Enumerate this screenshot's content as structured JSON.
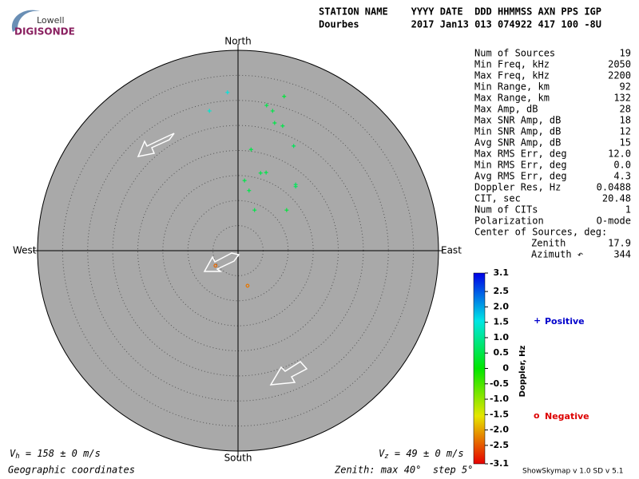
{
  "header": {
    "logo_top": "Lowell",
    "logo_bottom": "DIGISONDE",
    "line1": "STATION NAME    YYYY DATE  DDD HHMMSS AXN PPS IGP",
    "line2": "Dourbes         2017 Jan13 013 074922 417 100 -8U"
  },
  "stats": {
    "rows": [
      [
        "Num of Sources",
        "19"
      ],
      [
        "Min Freq, kHz",
        "2050"
      ],
      [
        "Max Freq, kHz",
        "2200"
      ],
      [
        "Min Range, km",
        "92"
      ],
      [
        "Max Range, km",
        "132"
      ],
      [
        "Max Amp, dB",
        "28"
      ],
      [
        "Max SNR Amp, dB",
        "18"
      ],
      [
        "Min SNR Amp, dB",
        "12"
      ],
      [
        "Avg SNR Amp, dB",
        "15"
      ],
      [
        "Max RMS Err, deg",
        "12.0"
      ],
      [
        "Min RMS Err, deg",
        "0.0"
      ],
      [
        "Avg RMS Err, deg",
        "4.3"
      ],
      [
        "Doppler Res, Hz",
        "0.0488"
      ],
      [
        "CIT, sec",
        "20.48"
      ],
      [
        "Num of CITs",
        "1"
      ],
      [
        "Polarization",
        "O-mode"
      ],
      [
        "Center of Sources, deg:"
      ]
    ],
    "center": [
      [
        "Zenith",
        "17.9"
      ],
      [
        "Azimuth ↶",
        "344"
      ]
    ]
  },
  "chart_data": {
    "type": "skymap",
    "zenith_max": 40,
    "zenith_step": 5,
    "directions": {
      "north": "North",
      "south": "South",
      "east": "East",
      "west": "West"
    },
    "east": [
      -2.1,
      -5.7,
      5.7,
      9.2,
      6.9,
      7.3,
      8.9,
      11.1,
      2.6,
      1.3,
      4.5,
      5.6,
      2.2,
      11.5,
      11.5,
      3.3,
      9.7,
      -4.5,
      1.9
    ],
    "north": [
      31.6,
      27.9,
      29.0,
      30.8,
      27.9,
      25.5,
      24.9,
      20.9,
      20.2,
      14.0,
      15.5,
      15.6,
      12.0,
      13.2,
      12.8,
      8.1,
      8.1,
      -3.0,
      -7.0
    ],
    "doppler": [
      1.5,
      1.4,
      0.5,
      0.4,
      0.5,
      0.5,
      0.5,
      0.6,
      0.5,
      0.5,
      0.5,
      0.5,
      0.5,
      0.6,
      0.6,
      0.5,
      0.4,
      -2.4,
      -2.3
    ],
    "colorbar": {
      "title": "Doppler, Hz",
      "ylim": [
        -3.1,
        3.1
      ],
      "yticks": [
        3.1,
        2.5,
        {
          "value": 2,
          "label": "2.0"
        },
        1.5,
        {
          "value": 1,
          "label": "1.0"
        },
        0.5,
        0,
        -0.5,
        {
          "value": -1,
          "label": "-1.0"
        },
        -1.5,
        {
          "value": -2,
          "label": "-2.0"
        },
        -2.5,
        -3.1
      ]
    },
    "legend": {
      "positive_symbol": "+",
      "positive": "Positive",
      "positive_color": "#0000cc",
      "negative_symbol": "o",
      "negative": "Negative",
      "negative_color": "#dd0000"
    }
  },
  "footer": {
    "vh_symbol": "V",
    "vh_sub": "h",
    "vh_text": " = 158 ± 0 m/s",
    "vz_symbol": "V",
    "vz_sub": "z",
    "vz_text": " = 49 ± 0 m/s",
    "coordinates": "Geographic coordinates",
    "zenith": "Zenith: max 40°  step 5°",
    "version": "ShowSkymap v 1.0  SD v 5.1"
  }
}
